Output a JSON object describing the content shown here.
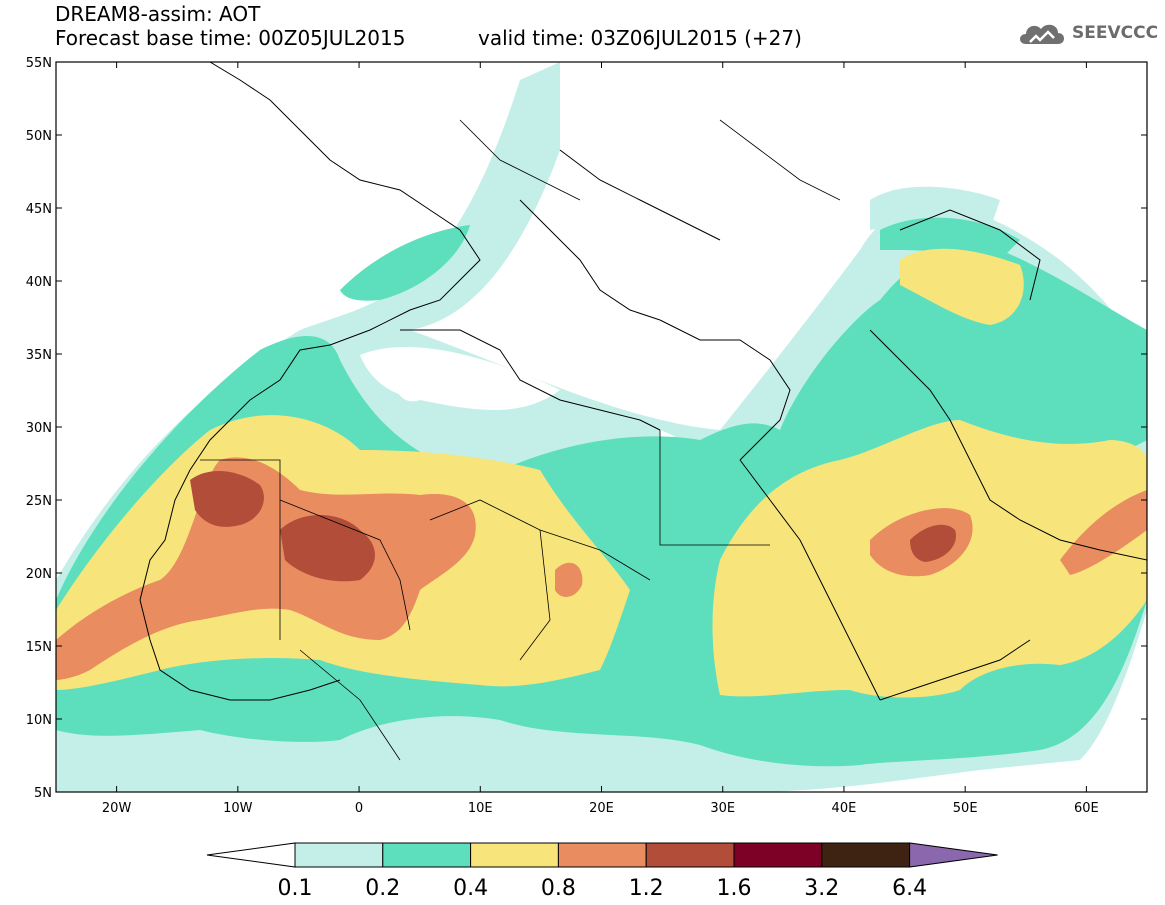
{
  "header": {
    "title": "DREAM8-assim: AOT",
    "base_time": "Forecast base time: 00Z05JUL2015",
    "valid_time": "valid time: 03Z06JUL2015 (+27)",
    "logo_text": "SEEVCCC",
    "logo_icon": "cloud-logo-icon"
  },
  "map": {
    "lat_labels": [
      "55N",
      "50N",
      "45N",
      "40N",
      "35N",
      "30N",
      "25N",
      "20N",
      "15N",
      "10N",
      "5N"
    ],
    "lon_labels": [
      "20W",
      "10W",
      "0",
      "10E",
      "20E",
      "30E",
      "40E",
      "50E",
      "60E"
    ],
    "extent": {
      "lon_min": -25,
      "lon_max": 65,
      "lat_min": 5,
      "lat_max": 55
    }
  },
  "colorbar": {
    "levels": [
      "0.1",
      "0.2",
      "0.4",
      "0.8",
      "1.2",
      "1.6",
      "3.2",
      "6.4"
    ],
    "colors": [
      "#ffffff",
      "#c4efe8",
      "#5ddfbe",
      "#f7e57c",
      "#e98c60",
      "#b14d39",
      "#7d0026",
      "#3e2312",
      "#8b67ad"
    ]
  }
}
